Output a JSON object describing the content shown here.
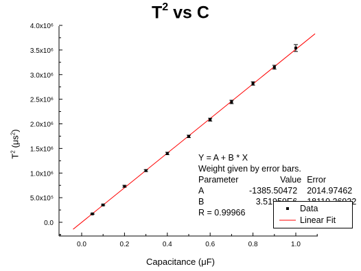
{
  "chart_data": {
    "type": "scatter",
    "title": {
      "base": "T",
      "sup": "2",
      "rest": " vs C"
    },
    "xlabel": "Capacitance (μF)",
    "ylabel": {
      "pre": "T",
      "sup1": "2",
      "mid": " (μs",
      "sup2": "2",
      "post": ")"
    },
    "xlim": [
      -0.12,
      1.12
    ],
    "ylim": [
      -700000,
      4000000
    ],
    "x_ticks": [
      0.0,
      0.2,
      0.4,
      0.6,
      0.8,
      1.0
    ],
    "x_tick_labels": [
      "0.0",
      "0.2",
      "0.4",
      "0.6",
      "0.8",
      "1.0"
    ],
    "y_ticks": [
      0,
      500000,
      1000000,
      1500000,
      2000000,
      2500000,
      3000000,
      3500000,
      4000000
    ],
    "y_tick_labels": [
      "0.0",
      "5.0x10⁵",
      "1.0x10⁶",
      "1.5x10⁶",
      "2.0x10⁶",
      "2.5x10⁶",
      "3.0x10⁶",
      "3.5x10⁶",
      "4.0x10⁶"
    ],
    "series": [
      {
        "name": "Data",
        "kind": "points",
        "x": [
          0.05,
          0.1,
          0.2,
          0.3,
          0.4,
          0.5,
          0.6,
          0.7,
          0.8,
          0.9,
          1.0
        ],
        "y": [
          171000,
          352000,
          731000,
          1050000,
          1398000,
          1745000,
          2085000,
          2445000,
          2820000,
          3150000,
          3540000
        ],
        "yerr": [
          10000,
          15000,
          20000,
          20000,
          25000,
          25000,
          30000,
          35000,
          35000,
          40000,
          70000
        ],
        "color": "#000000"
      },
      {
        "name": "Linear Fit",
        "kind": "line",
        "x": [
          -0.04,
          1.09
        ],
        "y": [
          -142000,
          3830000
        ],
        "color": "#ff0000"
      }
    ],
    "fit_text": {
      "equation": "Y = A + B * X",
      "weight_note": "Weight given by error bars.",
      "header": [
        "Parameter",
        "Value",
        "Error"
      ],
      "rows": [
        [
          "A",
          "-1385.50472",
          "2014.97462"
        ],
        [
          "B",
          "3.51959E6",
          "18110.26932"
        ]
      ],
      "r_value": "R = 0.99966"
    },
    "legend_position": "bottom-right",
    "grid": false
  }
}
